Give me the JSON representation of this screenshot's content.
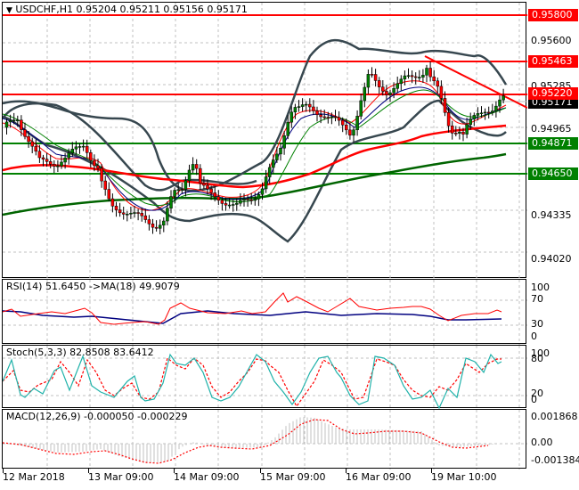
{
  "symbol_header": {
    "symbol": "USDCHF,H1",
    "open": "0.95204",
    "high": "0.95211",
    "low": "0.95156",
    "close": "0.95171",
    "label": "USDCHF,H1  0.95204 0.95211 0.95156 0.95171"
  },
  "price_axis": {
    "ticks": [
      "0.95600",
      "0.95285",
      "0.94965",
      "0.94335",
      "0.94020"
    ]
  },
  "horizontal_levels": [
    {
      "price": "0.95800",
      "color": "#ff0000"
    },
    {
      "price": "0.95463",
      "color": "#ff0000"
    },
    {
      "price": "0.95220",
      "color": "#ff0000"
    },
    {
      "price": "0.94871",
      "color": "#008000"
    },
    {
      "price": "0.94650",
      "color": "#008000"
    }
  ],
  "current_price": {
    "value": "0.95171",
    "color": "#000000"
  },
  "rsi_panel": {
    "title": "RSI(14) 51.6450   ->MA(18) 49.9079",
    "axis": [
      "100",
      "70",
      "30",
      "0"
    ]
  },
  "stoch_panel": {
    "title": "Stoch(5,3,3) 82.8508 83.6412",
    "axis": [
      "100",
      "80",
      "20",
      "0"
    ]
  },
  "macd_panel": {
    "title": "MACD(12,26,9) -0.000050 -0.000229",
    "axis": [
      "0.001868",
      "0.00",
      "-0.001384"
    ]
  },
  "time_axis": {
    "labels": [
      "12 Mar 2018",
      "13 Mar 09:00",
      "14 Mar 09:00",
      "15 Mar 09:00",
      "16 Mar 09:00",
      "19 Mar 10:00"
    ]
  },
  "colors": {
    "bull_candle": "#008000",
    "bear_candle": "#ff0000",
    "bollinger": "#37474f",
    "ma_slow_red": "#ff0000",
    "ma_slowest_green": "#006400",
    "rsi_line": "#ff0000",
    "rsi_ma": "#000080",
    "stoch_main": "#20b2aa",
    "stoch_signal": "#ff0000",
    "macd_hist": "#c0c0c0",
    "macd_signal": "#ff0000"
  }
}
